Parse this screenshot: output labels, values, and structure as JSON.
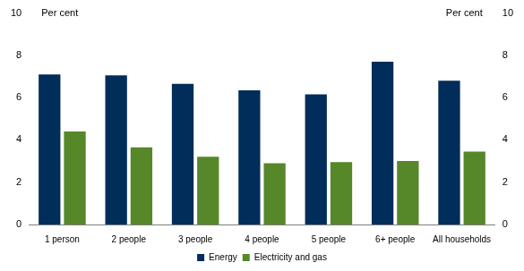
{
  "chart_data": {
    "type": "bar",
    "categories": [
      "1 person",
      "2 people",
      "3 people",
      "4 people",
      "5 people",
      "6+ people",
      "All households"
    ],
    "series": [
      {
        "name": "Energy",
        "color": "#002d5a",
        "values": [
          7.1,
          7.05,
          6.65,
          6.35,
          6.15,
          7.7,
          6.8
        ]
      },
      {
        "name": "Electricity and gas",
        "color": "#56882a",
        "values": [
          4.4,
          3.65,
          3.2,
          2.9,
          2.95,
          3.0,
          3.45
        ]
      }
    ],
    "y_label": "Per cent",
    "y2_label": "Per cent",
    "ylim": [
      0,
      10
    ],
    "yticks": [
      0,
      2,
      4,
      6,
      8,
      10
    ],
    "y2lim": [
      0,
      10
    ],
    "y2ticks": [
      0,
      2,
      4,
      6,
      8,
      10
    ],
    "grid": false,
    "legend": "bottom"
  }
}
